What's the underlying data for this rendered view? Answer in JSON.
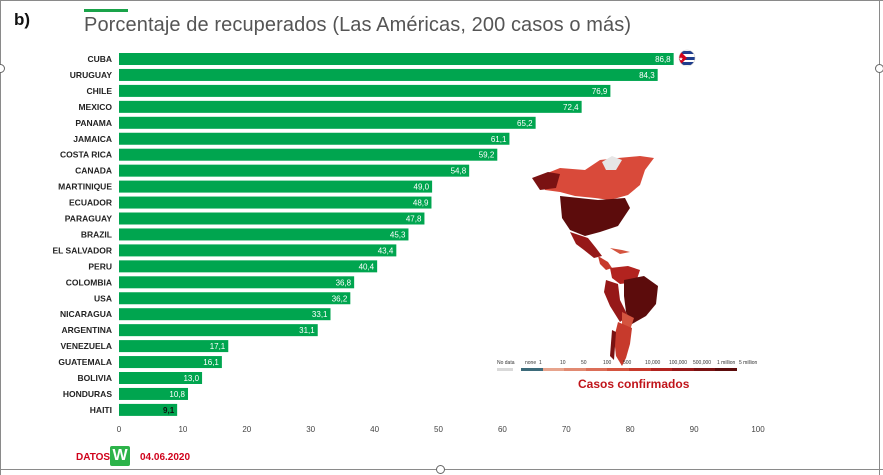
{
  "panel_label": "b)",
  "title": "Porcentaje de recuperados (Las Américas, 200 casos o más)",
  "footer": {
    "source_label": "DATOS",
    "logo_letter": "W",
    "date": "04.06.2020"
  },
  "map": {
    "caption": "Casos confirmados",
    "legend_labels": [
      "No data",
      "none",
      "1",
      "10",
      "50",
      "100",
      "500",
      "10,000",
      "100,000",
      "500,000",
      "1 million",
      "5 million"
    ],
    "legend_colors": [
      "#d9d9d9",
      "#3d6b7a",
      "#e7a48d",
      "#e18a72",
      "#db6e58",
      "#d4543f",
      "#c73a2c",
      "#b2231f",
      "#961818",
      "#7a1212",
      "#5c0c0c"
    ]
  },
  "colors": {
    "bar": "#00a54f",
    "bar_label": "#ffffff",
    "flag_blue": "#1f3d8c",
    "flag_red": "#d0021b"
  },
  "chart_data": {
    "type": "bar",
    "orientation": "horizontal",
    "categories": [
      "CUBA",
      "URUGUAY",
      "CHILE",
      "MEXICO",
      "PANAMA",
      "JAMAICA",
      "COSTA RICA",
      "CANADA",
      "MARTINIQUE",
      "ECUADOR",
      "PARAGUAY",
      "BRAZIL",
      "EL SALVADOR",
      "PERU",
      "COLOMBIA",
      "USA",
      "NICARAGUA",
      "ARGENTINA",
      "VENEZUELA",
      "GUATEMALA",
      "BOLIVIA",
      "HONDURAS",
      "HAITI"
    ],
    "values": [
      86.8,
      84.3,
      76.9,
      72.4,
      65.2,
      61.1,
      59.2,
      54.8,
      49.0,
      48.9,
      47.8,
      45.3,
      43.4,
      40.4,
      36.8,
      36.2,
      33.1,
      31.1,
      17.1,
      16.1,
      13.0,
      10.8,
      9.1
    ],
    "value_labels": [
      "86,8",
      "84,3",
      "76,9",
      "72,4",
      "65,2",
      "61,1",
      "59,2",
      "54,8",
      "49,0",
      "48,9",
      "47,8",
      "45,3",
      "43,4",
      "40,4",
      "36,8",
      "36,2",
      "33,1",
      "31,1",
      "17,1",
      "16,1",
      "13,0",
      "10,8",
      "9,1"
    ],
    "xlim": [
      0,
      100
    ],
    "x_ticks": [
      0,
      10,
      20,
      30,
      40,
      50,
      60,
      70,
      80,
      90,
      100
    ],
    "grid": false
  }
}
